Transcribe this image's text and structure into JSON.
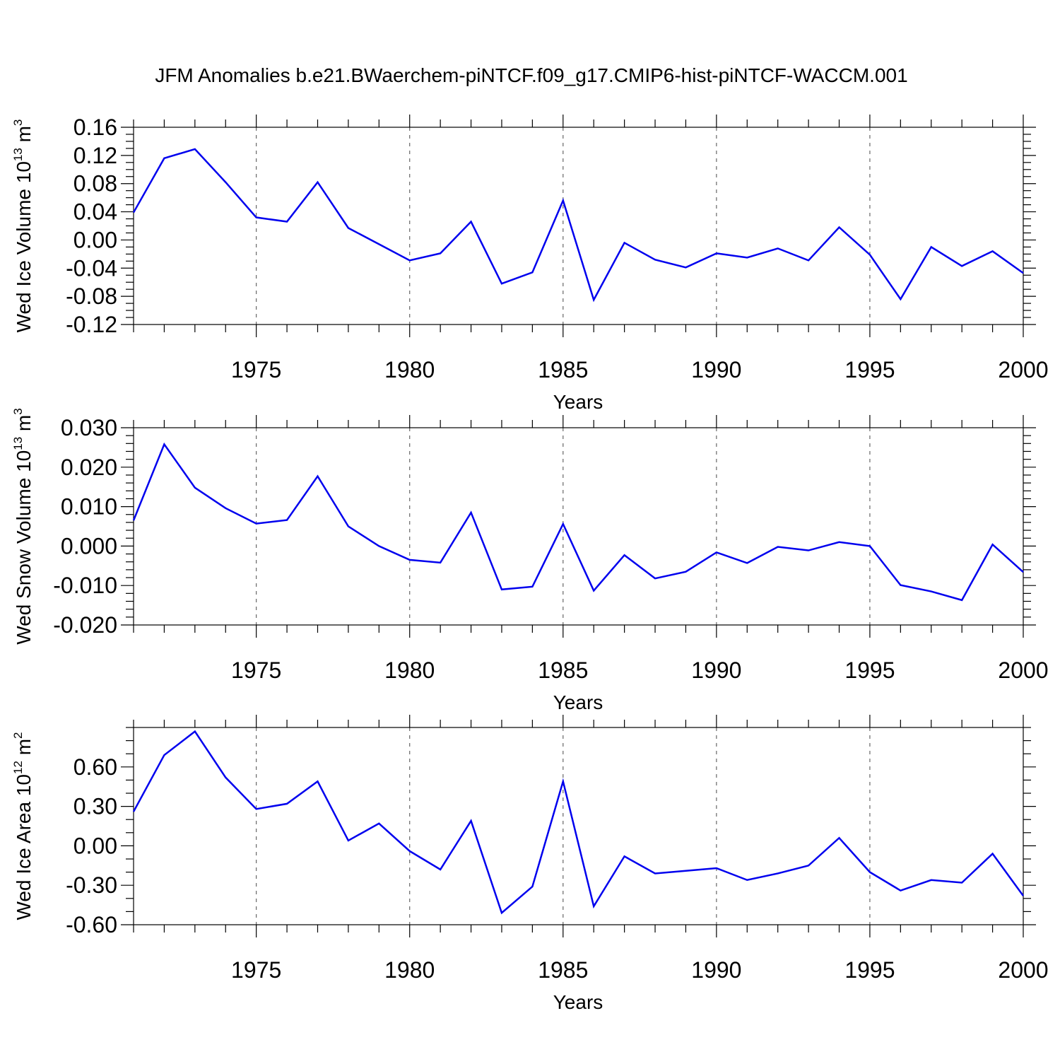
{
  "chart_data": {
    "type": "line",
    "title": "JFM Anomalies b.e21.BWaerchem-piNTCF.f09_g17.CMIP6-hist-piNTCF-WACCM.001",
    "line_color": "#0000ee",
    "x": [
      1971,
      1972,
      1973,
      1974,
      1975,
      1976,
      1977,
      1978,
      1979,
      1980,
      1981,
      1982,
      1983,
      1984,
      1985,
      1986,
      1987,
      1988,
      1989,
      1990,
      1991,
      1992,
      1993,
      1994,
      1995,
      1996,
      1997,
      1998,
      1999,
      2000
    ],
    "xlim": [
      1971,
      2000
    ],
    "x_ticks": [
      1975,
      1980,
      1985,
      1990,
      1995,
      2000
    ],
    "x_tick_labels": [
      "1975",
      "1980",
      "1985",
      "1990",
      "1995",
      "2000"
    ],
    "xlabel": "Years",
    "panels": [
      {
        "name": "ice-volume",
        "ylabel_main": "Wed Ice Volume 10",
        "ylabel_exp": "13",
        "ylabel_unit": " m",
        "ylabel_unit_exp": "3",
        "ylim": [
          -0.12,
          0.16
        ],
        "y_ticks": [
          -0.12,
          -0.08,
          -0.04,
          0.0,
          0.04,
          0.08,
          0.12,
          0.16
        ],
        "y_tick_labels": [
          "-0.12",
          "-0.08",
          "-0.04",
          "0.00",
          "0.04",
          "0.08",
          "0.12",
          "0.16"
        ],
        "y_minor_step": 0.01,
        "values": [
          0.039,
          0.116,
          0.129,
          0.082,
          0.032,
          0.026,
          0.082,
          0.017,
          -0.006,
          -0.029,
          -0.019,
          0.026,
          -0.062,
          -0.046,
          0.056,
          -0.085,
          -0.004,
          -0.028,
          -0.039,
          -0.019,
          -0.025,
          -0.012,
          -0.029,
          0.018,
          -0.021,
          -0.084,
          -0.01,
          -0.037,
          -0.016,
          -0.047
        ]
      },
      {
        "name": "snow-volume",
        "ylabel_main": "Wed Snow Volume 10",
        "ylabel_exp": "13",
        "ylabel_unit": " m",
        "ylabel_unit_exp": "3",
        "ylim": [
          -0.02,
          0.03
        ],
        "y_ticks": [
          -0.02,
          -0.01,
          0.0,
          0.01,
          0.02,
          0.03
        ],
        "y_tick_labels": [
          "-0.020",
          "-0.010",
          "0.000",
          "0.010",
          "0.020",
          "0.030"
        ],
        "y_minor_step": 0.002,
        "values": [
          0.0065,
          0.0258,
          0.0148,
          0.0096,
          0.0057,
          0.0066,
          0.0177,
          0.005,
          0.0,
          -0.0035,
          -0.0042,
          0.0085,
          -0.011,
          -0.0103,
          0.0056,
          -0.0113,
          -0.0023,
          -0.0082,
          -0.0065,
          -0.0016,
          -0.0043,
          -0.0002,
          -0.0011,
          0.001,
          0.0,
          -0.0099,
          -0.0115,
          -0.0137,
          0.0004,
          -0.0066
        ]
      },
      {
        "name": "ice-area",
        "ylabel_main": "Wed Ice Area 10",
        "ylabel_exp": "12",
        "ylabel_unit": " m",
        "ylabel_unit_exp": "2",
        "ylim": [
          -0.6,
          0.9
        ],
        "y_ticks": [
          -0.6,
          -0.3,
          0.0,
          0.3,
          0.6
        ],
        "y_tick_labels": [
          "-0.60",
          "-0.30",
          "0.00",
          "0.30",
          "0.60"
        ],
        "y_minor_step": 0.1,
        "values": [
          0.26,
          0.69,
          0.87,
          0.52,
          0.28,
          0.32,
          0.49,
          0.04,
          0.17,
          -0.04,
          -0.18,
          0.19,
          -0.51,
          -0.31,
          0.49,
          -0.46,
          -0.08,
          -0.21,
          -0.19,
          -0.17,
          -0.26,
          -0.21,
          -0.15,
          0.06,
          -0.2,
          -0.34,
          -0.26,
          -0.28,
          -0.06,
          -0.38
        ]
      }
    ]
  }
}
